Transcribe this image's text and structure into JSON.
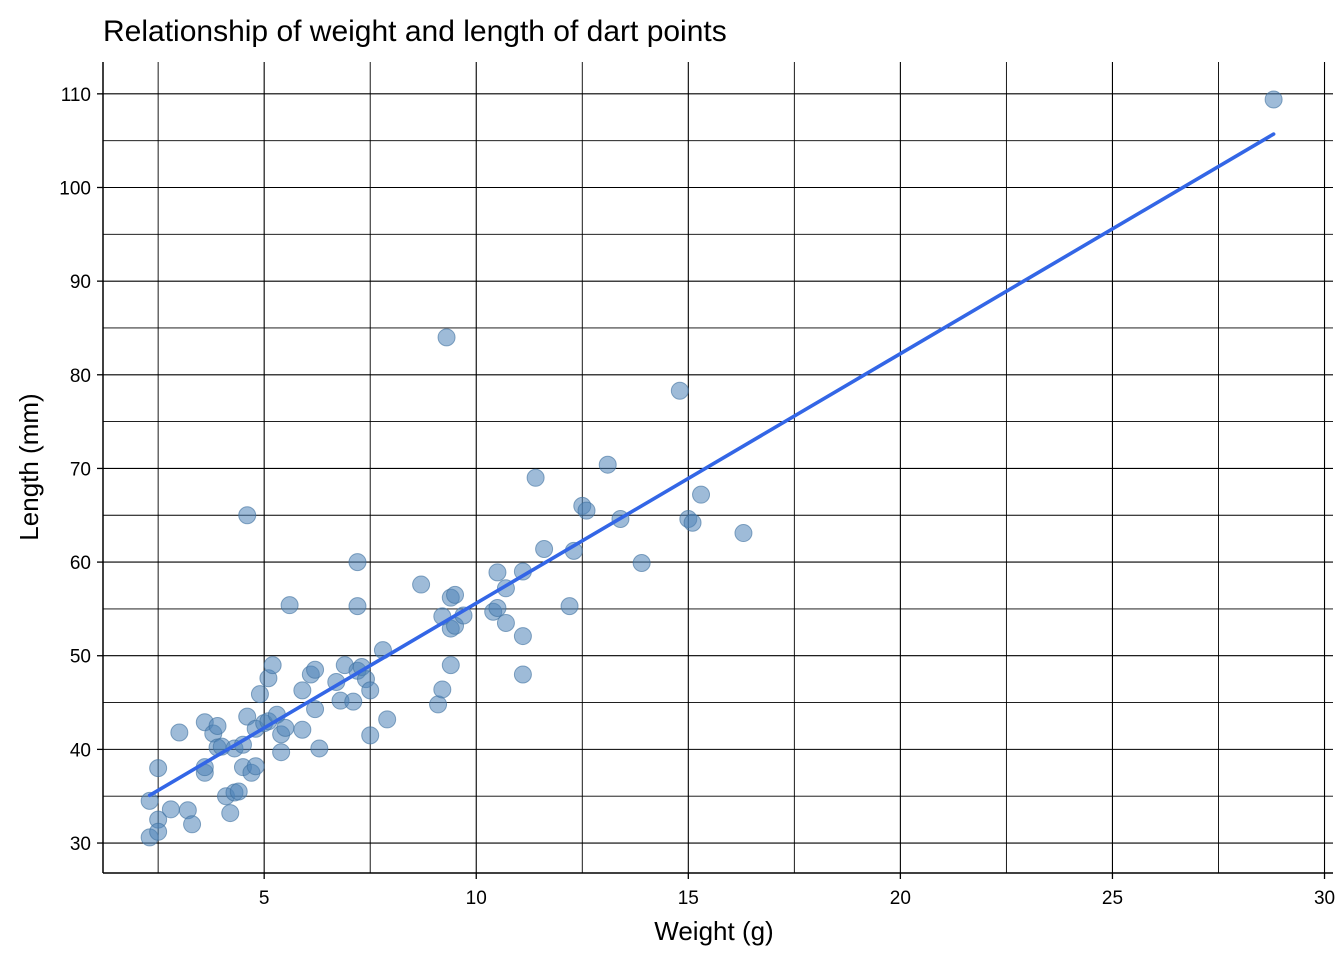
{
  "colors": {
    "point_fill": "#4f84b8",
    "point_stroke": "#3d6f9e",
    "fit_line": "#3366e6",
    "grid": "#000000",
    "background": "#ffffff"
  },
  "chart_data": {
    "type": "scatter",
    "title": "Relationship of weight and length of dart points",
    "xlabel": "Weight (g)",
    "ylabel": "Length (mm)",
    "xlim": [
      1.2,
      30.2
    ],
    "ylim": [
      26.8,
      113.4
    ],
    "x_ticks": [
      5,
      10,
      15,
      20,
      25,
      30
    ],
    "y_ticks": [
      30,
      40,
      50,
      60,
      70,
      80,
      90,
      100,
      110
    ],
    "grid": true,
    "legend": "none",
    "series": [
      {
        "points": [
          [
            2.3,
            34.5
          ],
          [
            2.3,
            30.6
          ],
          [
            2.5,
            38.0
          ],
          [
            2.5,
            32.5
          ],
          [
            2.5,
            31.2
          ],
          [
            2.8,
            33.6
          ],
          [
            3.0,
            41.8
          ],
          [
            3.2,
            33.5
          ],
          [
            3.3,
            32.0
          ],
          [
            3.6,
            37.5
          ],
          [
            3.6,
            38.1
          ],
          [
            3.6,
            42.9
          ],
          [
            3.8,
            41.7
          ],
          [
            3.9,
            40.2
          ],
          [
            3.9,
            42.5
          ],
          [
            4.0,
            40.3
          ],
          [
            4.1,
            35.0
          ],
          [
            4.2,
            33.2
          ],
          [
            4.3,
            35.4
          ],
          [
            4.3,
            40.1
          ],
          [
            4.4,
            35.5
          ],
          [
            4.5,
            40.5
          ],
          [
            4.5,
            38.1
          ],
          [
            4.6,
            43.5
          ],
          [
            4.6,
            65.0
          ],
          [
            4.7,
            37.5
          ],
          [
            4.8,
            42.2
          ],
          [
            4.8,
            38.2
          ],
          [
            4.9,
            45.9
          ],
          [
            5.0,
            42.8
          ],
          [
            5.1,
            47.6
          ],
          [
            5.1,
            43.0
          ],
          [
            5.2,
            49.0
          ],
          [
            5.3,
            43.7
          ],
          [
            5.4,
            39.7
          ],
          [
            5.4,
            41.6
          ],
          [
            5.5,
            42.3
          ],
          [
            5.6,
            55.4
          ],
          [
            5.9,
            46.3
          ],
          [
            5.9,
            42.1
          ],
          [
            6.1,
            48.0
          ],
          [
            6.2,
            48.5
          ],
          [
            6.2,
            44.3
          ],
          [
            6.3,
            40.1
          ],
          [
            6.7,
            47.2
          ],
          [
            6.8,
            45.2
          ],
          [
            6.9,
            49.0
          ],
          [
            7.1,
            45.1
          ],
          [
            7.2,
            48.4
          ],
          [
            7.2,
            55.3
          ],
          [
            7.2,
            60.0
          ],
          [
            7.3,
            48.8
          ],
          [
            7.4,
            47.5
          ],
          [
            7.5,
            46.3
          ],
          [
            7.5,
            41.5
          ],
          [
            7.8,
            50.6
          ],
          [
            7.9,
            43.2
          ],
          [
            8.7,
            57.6
          ],
          [
            9.1,
            44.8
          ],
          [
            9.2,
            46.4
          ],
          [
            9.2,
            54.2
          ],
          [
            9.3,
            84.0
          ],
          [
            9.4,
            56.2
          ],
          [
            9.4,
            52.9
          ],
          [
            9.4,
            49.0
          ],
          [
            9.5,
            53.2
          ],
          [
            9.5,
            56.5
          ],
          [
            9.7,
            54.3
          ],
          [
            10.4,
            54.7
          ],
          [
            10.5,
            58.9
          ],
          [
            10.5,
            55.1
          ],
          [
            10.7,
            57.2
          ],
          [
            10.7,
            53.5
          ],
          [
            11.1,
            59.0
          ],
          [
            11.1,
            52.1
          ],
          [
            11.1,
            48.0
          ],
          [
            11.4,
            69.0
          ],
          [
            11.6,
            61.4
          ],
          [
            12.2,
            55.3
          ],
          [
            12.3,
            61.2
          ],
          [
            12.5,
            66.0
          ],
          [
            12.6,
            65.5
          ],
          [
            13.1,
            70.4
          ],
          [
            13.4,
            64.6
          ],
          [
            13.9,
            59.9
          ],
          [
            14.8,
            78.3
          ],
          [
            15.0,
            64.6
          ],
          [
            15.1,
            64.2
          ],
          [
            15.3,
            67.2
          ],
          [
            16.3,
            63.1
          ],
          [
            28.8,
            109.4
          ]
        ]
      }
    ],
    "fit_line": {
      "x": [
        2.3,
        28.8
      ],
      "y": [
        35.1,
        105.7
      ]
    }
  }
}
